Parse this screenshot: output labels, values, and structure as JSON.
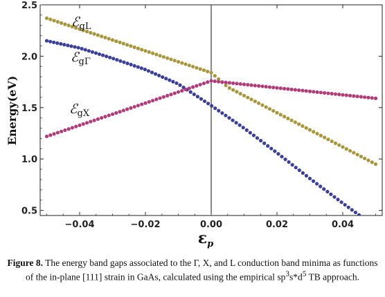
{
  "chart_data": {
    "type": "scatter",
    "xlabel": "ε",
    "xlabel_sub": "p",
    "ylabel": "Energy(eV)",
    "xlim": [
      -0.052,
      0.052
    ],
    "ylim": [
      0.45,
      2.5
    ],
    "xticks": [
      -0.04,
      -0.02,
      0.0,
      0.02,
      0.04
    ],
    "xtick_labels": [
      "−0.04",
      "−0.02",
      "0.00",
      "0.02",
      "0.04"
    ],
    "yticks": [
      0.5,
      1.0,
      1.5,
      2.0,
      2.5
    ],
    "ytick_labels": [
      "0.5",
      "1.0",
      "1.5",
      "2.0",
      "2.5"
    ],
    "grid": false,
    "reference_line_x": 0.0,
    "series": [
      {
        "name": "gL",
        "label_script": "ℰ",
        "label_sub": "gL",
        "color": "#a8963a",
        "points": [
          [
            -0.05,
            2.37
          ],
          [
            0.0,
            1.84
          ],
          [
            0.005,
            1.7
          ],
          [
            0.05,
            0.95
          ]
        ]
      },
      {
        "name": "gΓ",
        "label_script": "ℰ",
        "label_sub": "gΓ",
        "color": "#3b3e9a",
        "points": [
          [
            -0.05,
            2.15
          ],
          [
            -0.04,
            2.08
          ],
          [
            -0.03,
            1.98
          ],
          [
            -0.02,
            1.87
          ],
          [
            -0.01,
            1.73
          ],
          [
            0.0,
            1.52
          ],
          [
            0.01,
            1.3
          ],
          [
            0.02,
            1.06
          ],
          [
            0.03,
            0.81
          ],
          [
            0.04,
            0.57
          ],
          [
            0.046,
            0.43
          ]
        ]
      },
      {
        "name": "gX",
        "label_script": "ℰ",
        "label_sub": "gX",
        "color": "#b23a78",
        "points": [
          [
            -0.05,
            1.22
          ],
          [
            0.0,
            1.76
          ],
          [
            0.05,
            1.59
          ]
        ]
      }
    ]
  },
  "caption": {
    "figure_label": "Figure 8.",
    "text": " The energy band gaps associated to the Γ, X, and L conduction band minima as functions of the in-plane [111] strain in GaAs, calculated using the empirical sp",
    "sup1": "3",
    "mid": "s*d",
    "sup2": "5",
    "end": " TB approach."
  }
}
